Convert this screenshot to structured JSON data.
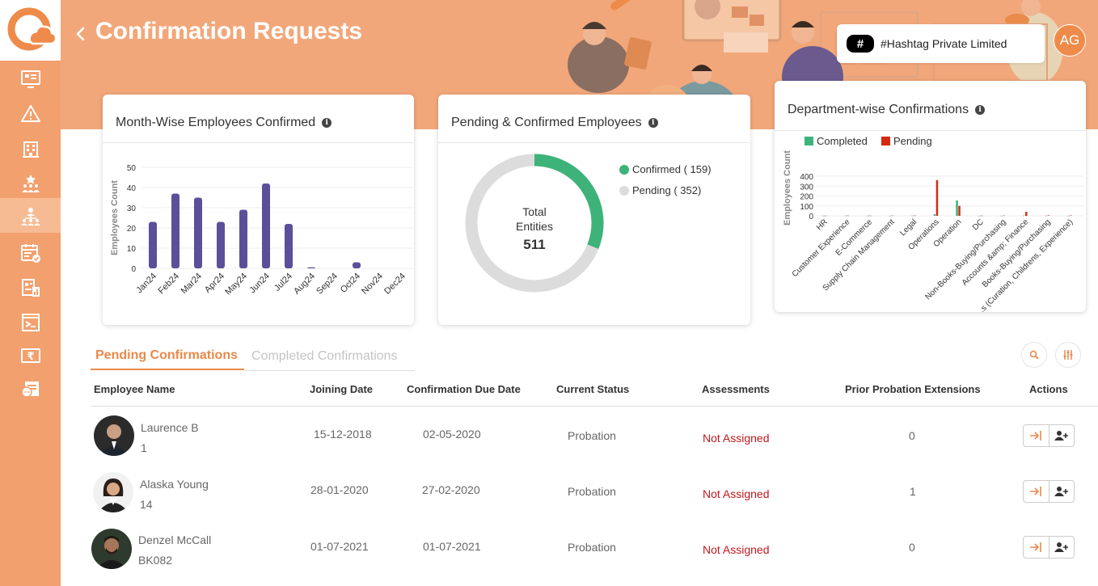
{
  "header": {
    "title": "Confirmation Requests",
    "org_badge": "#",
    "org_name": "#Hashtag Private Limited",
    "user_initials": "AG"
  },
  "sidebar": {
    "items": [
      {
        "icon": "dashboard-icon"
      },
      {
        "icon": "warning-icon"
      },
      {
        "icon": "building-icon"
      },
      {
        "icon": "awards-icon"
      },
      {
        "icon": "team-icon",
        "active": true
      },
      {
        "icon": "calendar-check-icon"
      },
      {
        "icon": "report-icon"
      },
      {
        "icon": "document-icon"
      },
      {
        "icon": "rupee-icon"
      },
      {
        "icon": "chat-doc-icon"
      }
    ]
  },
  "cards": {
    "month_wise": {
      "title": "Month-Wise Employees Confirmed"
    },
    "pending_confirmed": {
      "title": "Pending & Confirmed Employees",
      "center_line1": "Total",
      "center_line2": "Entities",
      "center_value": "511"
    },
    "department_wise": {
      "title": "Department-wise Confirmations"
    }
  },
  "chart_data": [
    {
      "type": "bar",
      "title": "Month-Wise Employees Confirmed",
      "ylabel": "Employees Count",
      "xlabel": "",
      "categories": [
        "Jan24",
        "Feb24",
        "Mar24",
        "Apr24",
        "May24",
        "Jun24",
        "Jul24",
        "Aug24",
        "Sep24",
        "Oct24",
        "Nov24",
        "Dec24"
      ],
      "values": [
        23,
        37,
        35,
        23,
        29,
        42,
        22,
        0.5,
        0,
        3,
        0,
        0
      ],
      "ylim": [
        0,
        50
      ],
      "yticks": [
        "0",
        "10",
        "20",
        "30",
        "40",
        "50"
      ],
      "color": "#5b4f9a",
      "grid": true
    },
    {
      "type": "pie",
      "title": "Pending & Confirmed Employees",
      "labels": [
        "Confirmed",
        "Pending"
      ],
      "values": [
        159,
        352
      ],
      "legend_labels": [
        "Confirmed ( 159)",
        "Pending ( 352)"
      ],
      "colors": [
        "#3db37a",
        "#dcdcdc"
      ]
    },
    {
      "type": "bar",
      "title": "Department-wise Confirmations",
      "ylabel": "Employees Count",
      "categories": [
        "HR",
        "Customer Experience",
        "E-Commerce",
        "Supply Chain Management",
        "Legal",
        "Operations",
        "Operation",
        "DC",
        "Non-Books-Buying/Purchasing",
        "Accounts &amp; Finance",
        "Books-Buying/Purchasing",
        "...s (Curation, Childrens, Experience)"
      ],
      "series": [
        {
          "name": "Completed",
          "values": [
            1,
            2,
            1,
            1,
            2,
            15,
            155,
            1,
            1,
            3,
            2,
            1
          ]
        },
        {
          "name": "Pending",
          "values": [
            2,
            3,
            2,
            3,
            3,
            360,
            100,
            2,
            3,
            40,
            5,
            4
          ]
        }
      ],
      "colors": [
        "#3db37a",
        "#d42a12"
      ],
      "ylim": [
        0,
        400
      ],
      "yticks": [
        "0",
        "100",
        "200",
        "300",
        "400"
      ],
      "legend": "top"
    }
  ],
  "tabs": [
    {
      "label": "Pending Confirmations"
    },
    {
      "label": "Completed Confirmations"
    }
  ],
  "table": {
    "columns": [
      "Employee Name",
      "Joining Date",
      "Confirmation Due Date",
      "Current Status",
      "Assessments",
      "Prior Probation Extensions",
      "Actions"
    ],
    "rows": [
      {
        "name": "Laurence B",
        "id": "1",
        "joining": "15-12-2018",
        "due": "02-05-2020",
        "status": "Probation",
        "assessment": "Not Assigned",
        "extensions": "0"
      },
      {
        "name": "Alaska Young",
        "id": "14",
        "joining": "28-01-2020",
        "due": "27-02-2020",
        "status": "Probation",
        "assessment": "Not Assigned",
        "extensions": "1"
      },
      {
        "name": "Denzel McCall",
        "id": "BK082",
        "joining": "01-07-2021",
        "due": "01-07-2021",
        "status": "Probation",
        "assessment": "Not Assigned",
        "extensions": "0"
      }
    ]
  }
}
